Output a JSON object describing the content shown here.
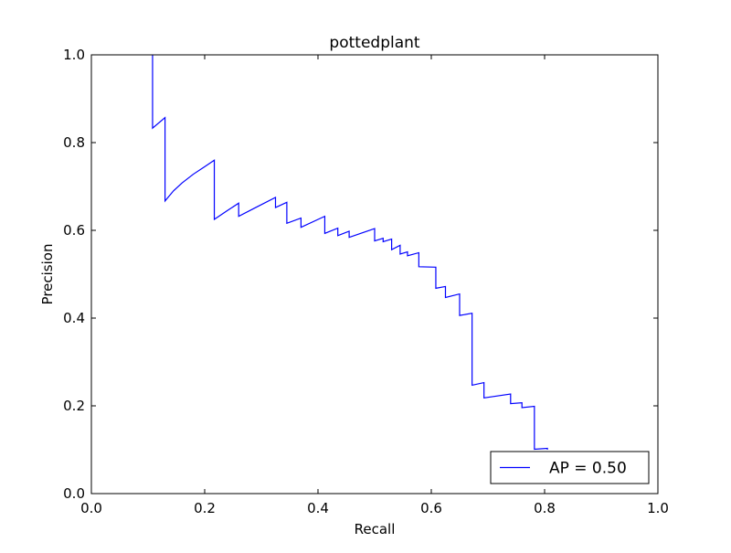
{
  "chart_data": {
    "type": "line",
    "title": "pottedplant",
    "xlabel": "Recall",
    "ylabel": "Precision",
    "xlim": [
      0.0,
      1.0
    ],
    "ylim": [
      0.0,
      1.0
    ],
    "xticks": [
      "0.0",
      "0.2",
      "0.4",
      "0.6",
      "0.8",
      "1.0"
    ],
    "yticks": [
      "0.0",
      "0.2",
      "0.4",
      "0.6",
      "0.8",
      "1.0"
    ],
    "grid": false,
    "legend": {
      "position": "lower-right",
      "entries": [
        "AP = 0.50"
      ]
    },
    "series": [
      {
        "name": "AP = 0.50",
        "color": "#0000ff",
        "x": [
          0.108,
          0.108,
          0.108,
          0.13,
          0.13,
          0.145,
          0.16,
          0.18,
          0.2,
          0.217,
          0.217,
          0.24,
          0.26,
          0.26,
          0.29,
          0.325,
          0.325,
          0.345,
          0.345,
          0.37,
          0.37,
          0.412,
          0.412,
          0.435,
          0.435,
          0.455,
          0.455,
          0.5,
          0.5,
          0.515,
          0.515,
          0.53,
          0.53,
          0.545,
          0.545,
          0.558,
          0.558,
          0.578,
          0.578,
          0.608,
          0.608,
          0.625,
          0.625,
          0.65,
          0.65,
          0.672,
          0.672,
          0.693,
          0.693,
          0.74,
          0.74,
          0.76,
          0.76,
          0.782,
          0.782,
          0.805,
          0.805
        ],
        "y": [
          1.0,
          0.833,
          0.833,
          0.857,
          0.667,
          0.69,
          0.708,
          0.728,
          0.745,
          0.76,
          0.625,
          0.645,
          0.662,
          0.632,
          0.652,
          0.675,
          0.652,
          0.664,
          0.616,
          0.628,
          0.607,
          0.632,
          0.593,
          0.605,
          0.588,
          0.598,
          0.584,
          0.604,
          0.576,
          0.582,
          0.574,
          0.58,
          0.556,
          0.566,
          0.546,
          0.551,
          0.542,
          0.549,
          0.517,
          0.516,
          0.468,
          0.472,
          0.447,
          0.455,
          0.406,
          0.411,
          0.247,
          0.253,
          0.218,
          0.227,
          0.205,
          0.207,
          0.196,
          0.199,
          0.101,
          0.103,
          0.1
        ]
      }
    ]
  }
}
